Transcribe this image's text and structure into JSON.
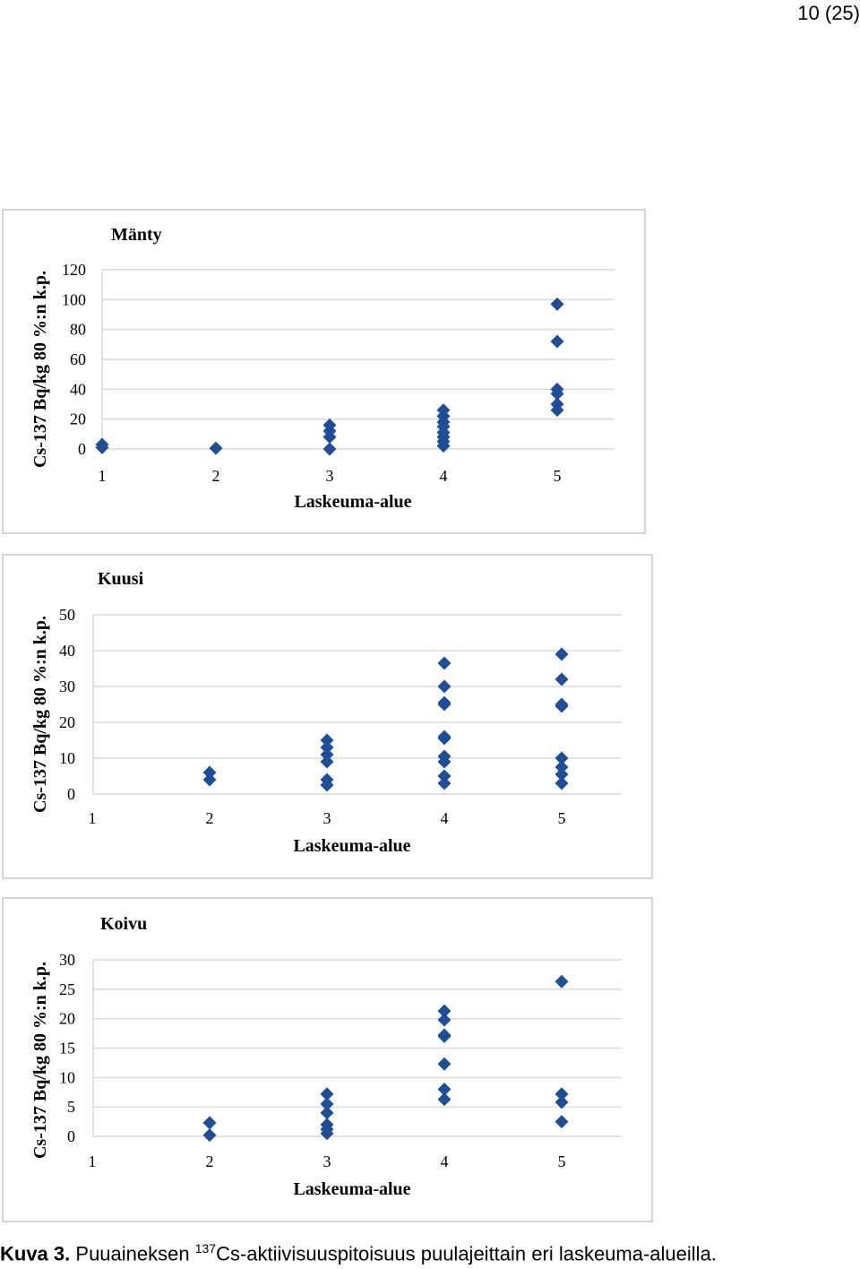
{
  "page_number": "10 (25)",
  "caption": {
    "label": "Kuva 3.",
    "text_before": "Puuaineksen",
    "isotope_mass": "137",
    "text_after": "Cs-aktiivisuuspitoisuus puulajeittain eri laskeuma-alueilla."
  },
  "colors": {
    "marker": "#1f4e96",
    "gridline": "#d9d9d9",
    "border": "#d4d4d4"
  },
  "chart_data": [
    {
      "type": "scatter",
      "title": "Mänty",
      "xlabel": "Laskeuma-alue",
      "ylabel": "Cs-137 Bq/kg 80 %:n k.p.",
      "xlim": [
        1,
        5.2
      ],
      "ylim": [
        0,
        120
      ],
      "yticks": [
        0,
        20,
        40,
        60,
        80,
        100,
        120
      ],
      "xticks": [
        1,
        2,
        3,
        4,
        5
      ],
      "grid": true,
      "marker": "diamond",
      "points": [
        [
          1,
          1
        ],
        [
          1,
          3
        ],
        [
          2,
          0.5
        ],
        [
          3,
          0
        ],
        [
          3,
          8
        ],
        [
          3,
          12
        ],
        [
          3,
          16
        ],
        [
          4,
          2
        ],
        [
          4,
          5
        ],
        [
          4,
          8
        ],
        [
          4,
          11
        ],
        [
          4,
          15
        ],
        [
          4,
          18
        ],
        [
          4,
          22
        ],
        [
          4,
          26
        ],
        [
          5,
          26
        ],
        [
          5,
          30
        ],
        [
          5,
          37
        ],
        [
          5,
          40
        ],
        [
          5,
          72
        ],
        [
          5,
          97
        ]
      ]
    },
    {
      "type": "scatter",
      "title": "Kuusi",
      "xlabel": "Laskeuma-alue",
      "ylabel": "Cs-137 Bq/kg 80 %:n k.p.",
      "xlim": [
        1,
        5.5
      ],
      "ylim": [
        0,
        50
      ],
      "yticks": [
        0,
        10,
        20,
        30,
        40,
        50
      ],
      "xticks": [
        1,
        2,
        3,
        4,
        5
      ],
      "grid": true,
      "marker": "diamond",
      "points": [
        [
          2,
          4
        ],
        [
          2,
          6
        ],
        [
          3,
          2.5
        ],
        [
          3,
          4
        ],
        [
          3,
          9
        ],
        [
          3,
          11
        ],
        [
          3,
          13
        ],
        [
          3,
          15
        ],
        [
          4,
          3
        ],
        [
          4,
          5
        ],
        [
          4,
          9
        ],
        [
          4,
          10.5
        ],
        [
          4,
          15.5
        ],
        [
          4,
          16
        ],
        [
          4,
          25
        ],
        [
          4,
          25.5
        ],
        [
          4,
          30
        ],
        [
          4,
          36.5
        ],
        [
          5,
          3
        ],
        [
          5,
          5.5
        ],
        [
          5,
          7.5
        ],
        [
          5,
          10
        ],
        [
          5,
          24.5
        ],
        [
          5,
          25
        ],
        [
          5,
          32
        ],
        [
          5,
          39
        ]
      ]
    },
    {
      "type": "scatter",
      "title": "Koivu",
      "xlabel": "Laskeuma-alue",
      "ylabel": "Cs-137 Bq/kg 80 %:n k.p.",
      "xlim": [
        1,
        5.5
      ],
      "ylim": [
        0,
        30
      ],
      "yticks": [
        0,
        5,
        10,
        15,
        20,
        25,
        30
      ],
      "xticks": [
        1,
        2,
        3,
        4,
        5
      ],
      "grid": true,
      "marker": "diamond",
      "points": [
        [
          2,
          0.2
        ],
        [
          2,
          2.3
        ],
        [
          3,
          0.5
        ],
        [
          3,
          1.2
        ],
        [
          3,
          2
        ],
        [
          3,
          4
        ],
        [
          3,
          5.5
        ],
        [
          3,
          7.2
        ],
        [
          4,
          6.3
        ],
        [
          4,
          8
        ],
        [
          4,
          12.3
        ],
        [
          4,
          17
        ],
        [
          4,
          17.2
        ],
        [
          4,
          19.8
        ],
        [
          4,
          21.3
        ],
        [
          5,
          2.5
        ],
        [
          5,
          5.8
        ],
        [
          5,
          7.2
        ],
        [
          5,
          26.3
        ]
      ]
    }
  ]
}
